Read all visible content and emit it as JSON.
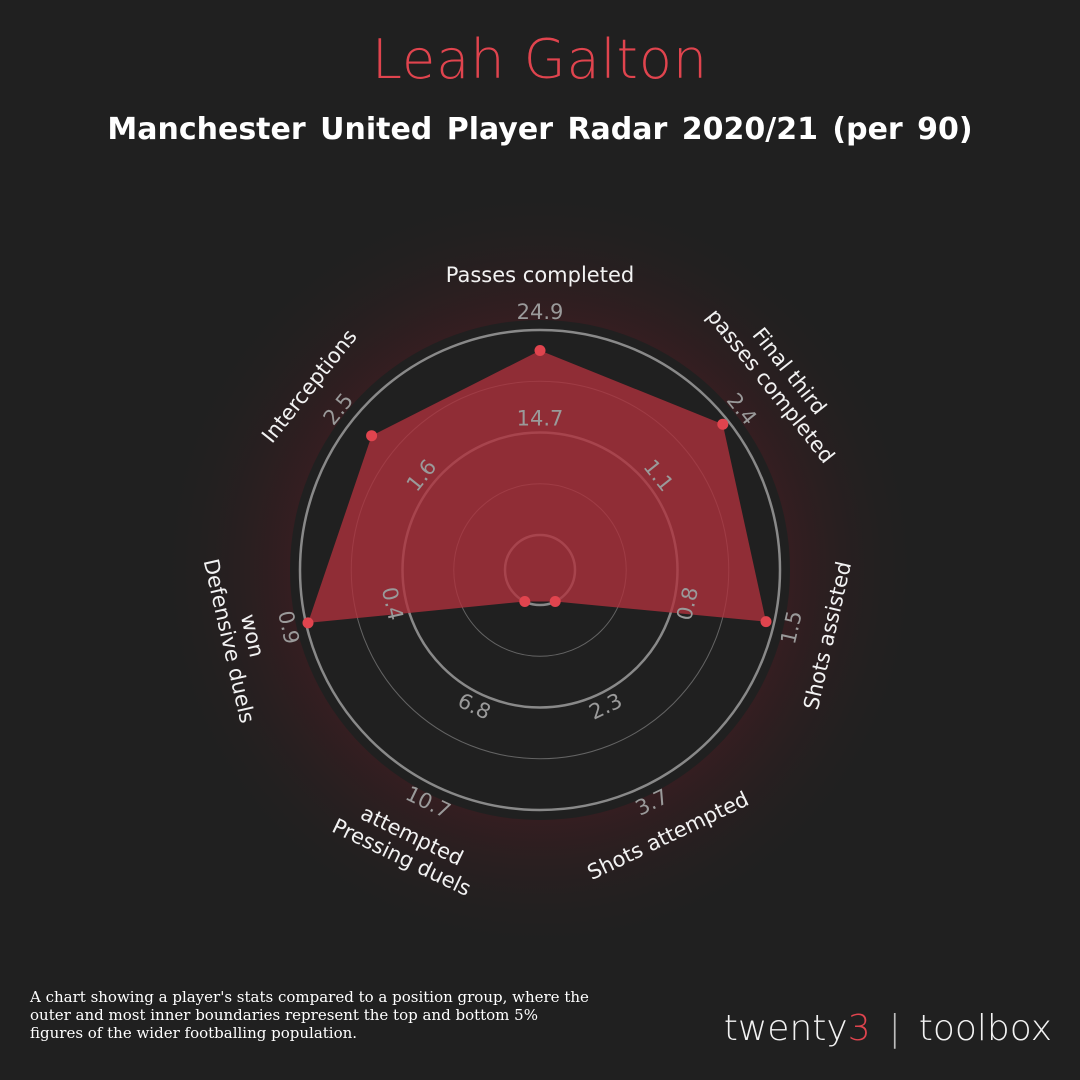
{
  "header": {
    "title": "Leah Galton",
    "subtitle": "Manchester United Player Radar 2020/21 (per 90)"
  },
  "chart_data": {
    "type": "radar",
    "title": "Leah Galton",
    "subtitle": "Manchester United Player Radar 2020/21 (per 90)",
    "axes": [
      {
        "label": "Passes completed",
        "label_lines": [
          "Passes completed"
        ],
        "mid": "14.7",
        "max": "24.9",
        "value": 0.9
      },
      {
        "label": "Final third passes completed",
        "label_lines": [
          "Final third",
          "passes completed"
        ],
        "mid": "1.1",
        "max": "2.4",
        "value": 0.97
      },
      {
        "label": "Shots assisted",
        "label_lines": [
          "Shots assisted"
        ],
        "mid": "0.8",
        "max": "1.5",
        "value": 0.96
      },
      {
        "label": "Shots attempted",
        "label_lines": [
          "Shots attempted"
        ],
        "mid": "2.3",
        "max": "3.7",
        "value": 0.0
      },
      {
        "label": "Pressing duels attempted",
        "label_lines": [
          "Pressing duels",
          "attempted"
        ],
        "mid": "6.8",
        "max": "10.7",
        "value": 0.0
      },
      {
        "label": "Defensive duels won",
        "label_lines": [
          "Defensive duels",
          "won"
        ],
        "mid": "0.4",
        "max": "0.9",
        "value": 0.99
      },
      {
        "label": "Interceptions",
        "label_lines": [
          "Interceptions"
        ],
        "mid": "1.6",
        "max": "2.5",
        "value": 0.88
      }
    ],
    "colors": {
      "fill": "#b0313c",
      "point": "#e0444e",
      "ring": "#9c9c9c",
      "background": "#202020"
    }
  },
  "footer": {
    "note": "A chart showing a player's stats compared to a position group, where the outer and most inner boundaries represent the top and bottom 5% figures of the wider footballing population.",
    "brand_main": "twenty",
    "brand_accent": "3",
    "brand_sep": "|",
    "brand_tail": "toolbox"
  }
}
